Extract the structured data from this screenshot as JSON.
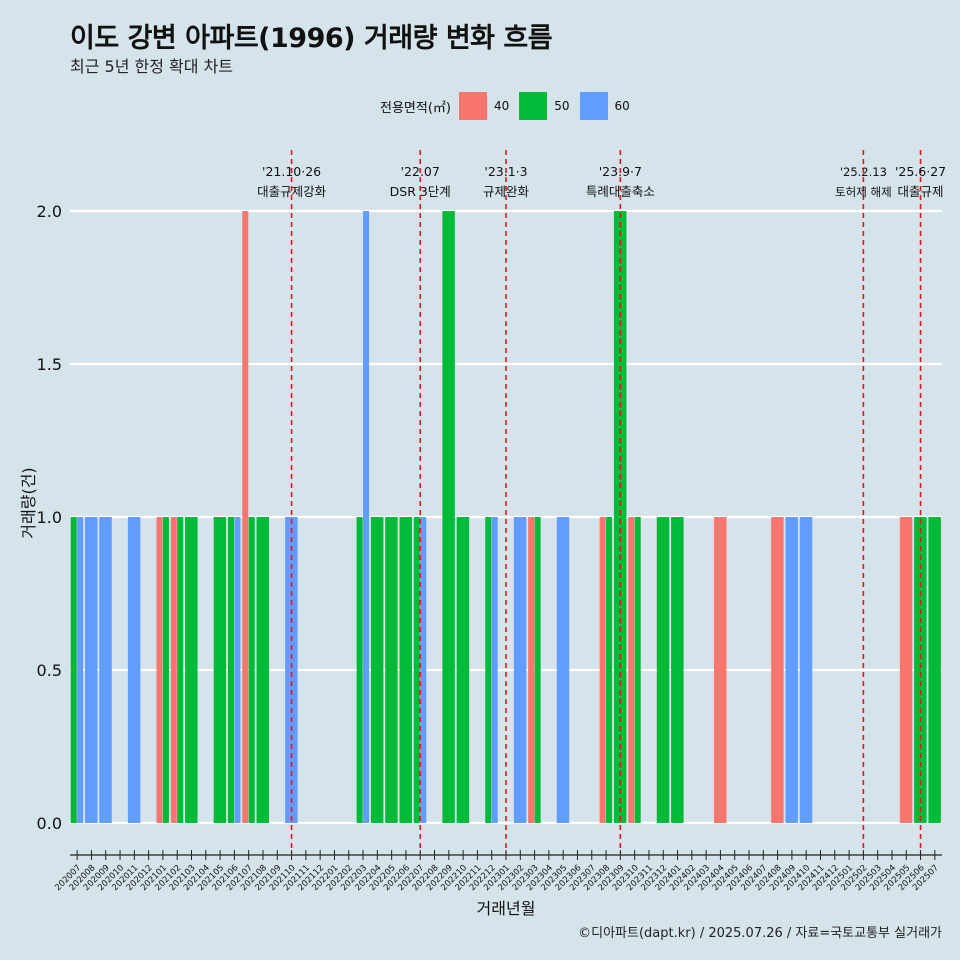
{
  "header": {
    "title": "이도 강변 아파트(1996) 거래량 변화 흐름",
    "subtitle": "최근 5년 한정 확대 차트"
  },
  "legend": {
    "title": "전용면적(㎡)",
    "items": [
      {
        "label": "40",
        "color": "#f8766d"
      },
      {
        "label": "50",
        "color": "#00ba38"
      },
      {
        "label": "60",
        "color": "#619cff"
      }
    ]
  },
  "caption": "©디아파트(dapt.kr) / 2025.07.26 / 자료=국토교통부 실거래가",
  "chart_data": {
    "type": "bar",
    "xlabel": "거래년월",
    "ylabel": "거래량(건)",
    "ylim": [
      0,
      2
    ],
    "yticks": [
      "0.0",
      "0.5",
      "1.0",
      "1.5",
      "2.0"
    ],
    "grid": true,
    "legend_position": "top",
    "categories": [
      "202007",
      "202008",
      "202009",
      "202010",
      "202011",
      "202012",
      "202101",
      "202102",
      "202103",
      "202104",
      "202105",
      "202106",
      "202107",
      "202108",
      "202109",
      "202110",
      "202111",
      "202112",
      "202201",
      "202202",
      "202203",
      "202204",
      "202205",
      "202206",
      "202207",
      "202208",
      "202209",
      "202210",
      "202211",
      "202212",
      "202301",
      "202302",
      "202303",
      "202304",
      "202305",
      "202306",
      "202307",
      "202308",
      "202309",
      "202310",
      "202311",
      "202312",
      "202401",
      "202402",
      "202403",
      "202404",
      "202405",
      "202406",
      "202407",
      "202408",
      "202409",
      "202410",
      "202411",
      "202412",
      "202501",
      "202502",
      "202503",
      "202504",
      "202505",
      "202506",
      "202507"
    ],
    "series": [
      {
        "name": "40",
        "color": "#f8766d",
        "values": [
          0,
          0,
          0,
          0,
          0,
          0,
          1,
          1,
          0,
          0,
          0,
          0,
          2,
          0,
          0,
          0,
          0,
          0,
          0,
          0,
          0,
          0,
          0,
          0,
          0,
          0,
          0,
          0,
          0,
          0,
          0,
          0,
          1,
          0,
          0,
          0,
          0,
          1,
          0,
          1,
          0,
          0,
          0,
          0,
          0,
          1,
          0,
          0,
          0,
          1,
          0,
          0,
          0,
          0,
          0,
          0,
          0,
          0,
          1,
          0,
          0
        ]
      },
      {
        "name": "50",
        "color": "#00ba38",
        "values": [
          1,
          0,
          0,
          0,
          0,
          0,
          1,
          1,
          1,
          0,
          1,
          1,
          1,
          1,
          0,
          0,
          0,
          0,
          0,
          0,
          1,
          1,
          1,
          1,
          1,
          0,
          2,
          1,
          0,
          1,
          0,
          0,
          1,
          0,
          0,
          0,
          0,
          1,
          2,
          1,
          0,
          1,
          1,
          0,
          0,
          0,
          0,
          0,
          0,
          0,
          0,
          0,
          0,
          0,
          0,
          0,
          0,
          0,
          0,
          1,
          1
        ]
      },
      {
        "name": "60",
        "color": "#619cff",
        "values": [
          1,
          1,
          1,
          0,
          1,
          0,
          0,
          0,
          0,
          0,
          0,
          1,
          0,
          0,
          0,
          1,
          0,
          0,
          0,
          0,
          2,
          0,
          0,
          0,
          1,
          0,
          0,
          0,
          0,
          1,
          0,
          1,
          0,
          0,
          1,
          0,
          0,
          0,
          0,
          0,
          0,
          0,
          0,
          0,
          0,
          0,
          0,
          0,
          0,
          0,
          1,
          1,
          0,
          0,
          0,
          0,
          0,
          0,
          0,
          0,
          0
        ]
      }
    ],
    "annotations": [
      {
        "date_index": 15,
        "lines": [
          "'21.10·26",
          "대출규제강화"
        ]
      },
      {
        "date_index": 24,
        "lines": [
          "'22.07",
          "DSR 3단계"
        ]
      },
      {
        "date_index": 30,
        "lines": [
          "'23.1·3",
          "규제완화"
        ]
      },
      {
        "date_index": 38,
        "lines": [
          "'23.9·7",
          "특례대출축소"
        ]
      },
      {
        "date_index": 55,
        "lines": [
          "'25.2.13",
          "토허제 해제"
        ]
      },
      {
        "date_index": 59,
        "lines": [
          "'25.6·27",
          "대출규제"
        ]
      }
    ]
  }
}
